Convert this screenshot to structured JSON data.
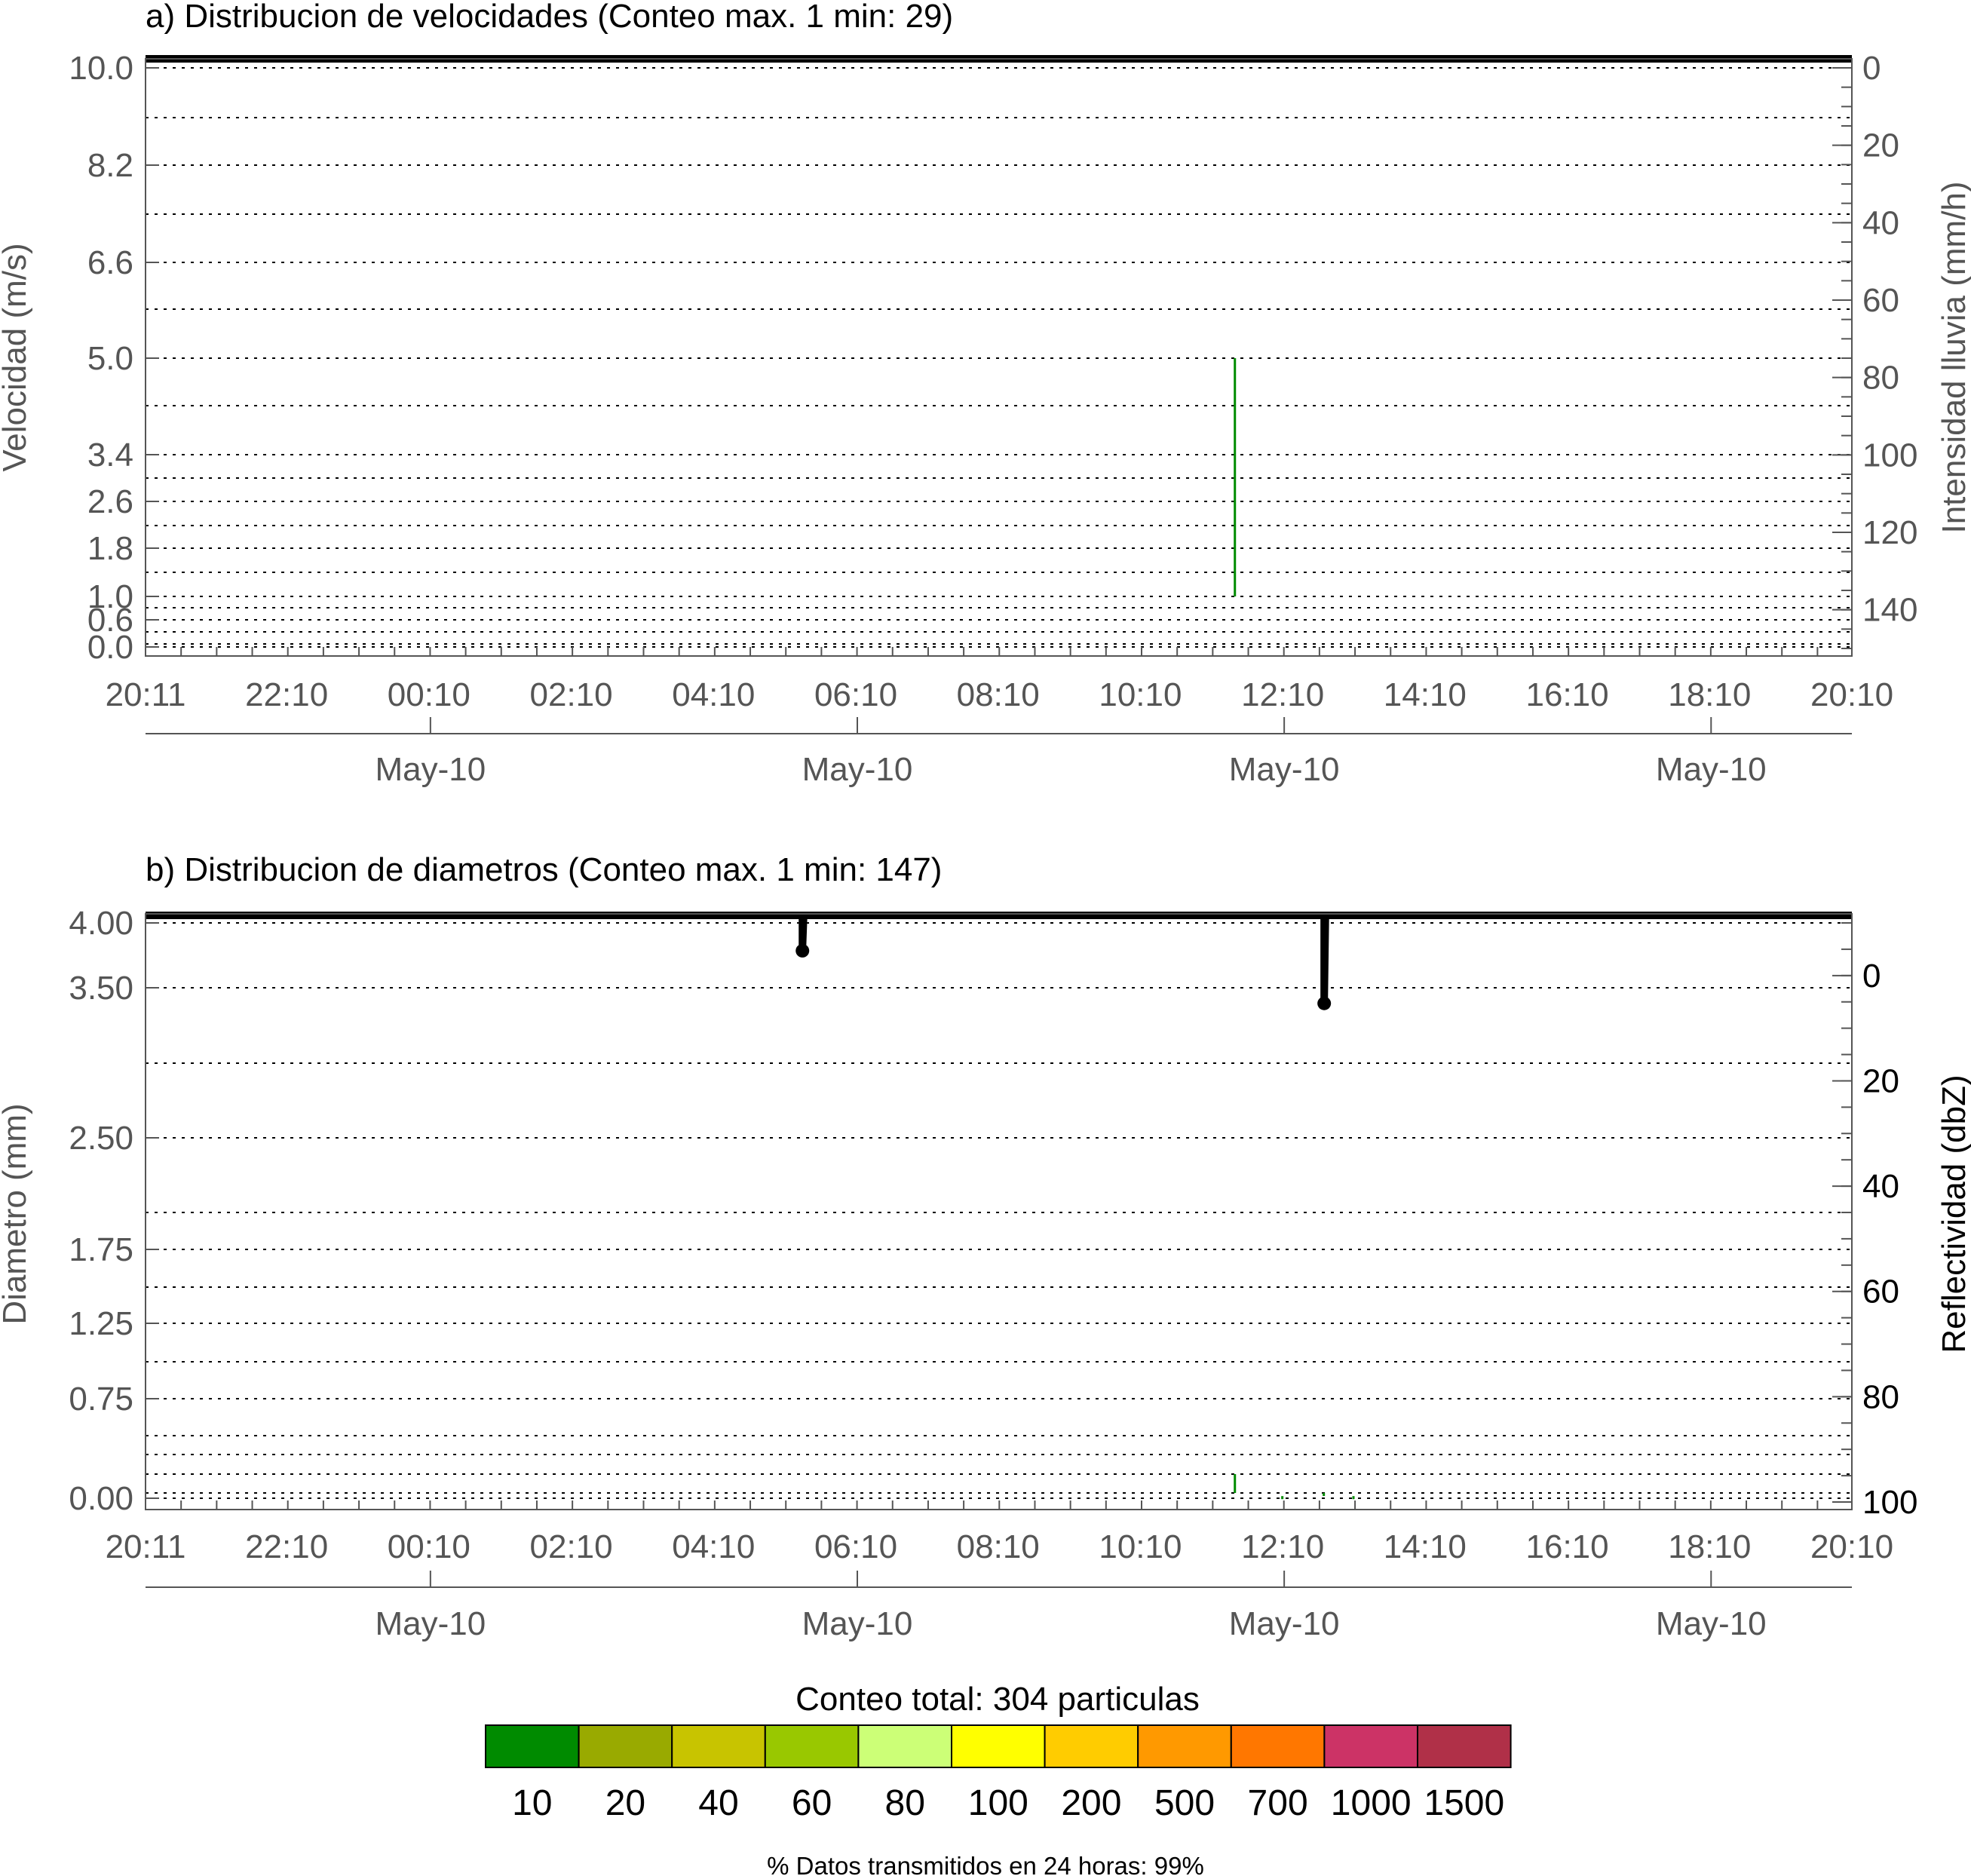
{
  "colors": {
    "frame": "#000000",
    "tick_text": "#555555",
    "grid": "#000000",
    "particles": "#008800"
  },
  "chart_data": [
    {
      "type": "heatmap",
      "title": "a) Distribucion de velocidades (Conteo max. 1 min: 29)",
      "ylabel": "Velocidad (m/s)",
      "y2label": "Intensidad lluvia (mm/h)",
      "xlabel": "",
      "ylim": [
        0.0,
        10.0
      ],
      "y_ticks": [
        "10.0",
        "8.2",
        "6.6",
        "5.0",
        "3.4",
        "2.6",
        "1.8",
        "1.0",
        "0.6",
        "0.0"
      ],
      "y_grid_bins": [
        10.0,
        9.1,
        8.2,
        7.4,
        6.6,
        5.8,
        5.0,
        4.2,
        3.4,
        3.0,
        2.6,
        2.2,
        1.8,
        1.4,
        1.0,
        0.8,
        0.6,
        0.4,
        0.2,
        0.0
      ],
      "y2_range": [
        0,
        150
      ],
      "y2_reversed": true,
      "y2_ticks": [
        "0",
        "20",
        "40",
        "60",
        "80",
        "100",
        "120",
        "140"
      ],
      "x_ticks": [
        "20:11",
        "22:10",
        "00:10",
        "02:10",
        "04:10",
        "06:10",
        "08:10",
        "10:10",
        "12:10",
        "14:10",
        "16:10",
        "18:10",
        "20:10"
      ],
      "date_ticks": [
        "May-10",
        "May-10",
        "May-10",
        "May-10"
      ],
      "grid": "dotted horizontal",
      "rain_intensity_series": [
        {
          "x": "20:11",
          "y": 0
        },
        {
          "x": "20:10",
          "y": 0
        }
      ],
      "cells": [
        {
          "x": "11:30",
          "v_from": 1.0,
          "v_to": 5.0,
          "count_class": "10"
        }
      ]
    },
    {
      "type": "heatmap",
      "title": "b) Distribucion de diametros (Conteo max. 1 min: 147)",
      "ylabel": "Diametro (mm)",
      "y2label": "Reflectividad (dbZ)",
      "xlabel": "",
      "ylim": [
        0.0,
        4.0
      ],
      "y_ticks": [
        "4.00",
        "3.50",
        "2.50",
        "1.75",
        "1.25",
        "0.75",
        "0.00"
      ],
      "y_grid_bins": [
        4.0,
        3.5,
        3.0,
        2.5,
        2.0,
        1.75,
        1.5,
        1.25,
        1.0,
        0.75,
        0.5,
        0.375,
        0.25,
        0.125,
        0.0
      ],
      "y2_range": [
        -10,
        100
      ],
      "y2_reversed": true,
      "y2_ticks": [
        "0",
        "20",
        "40",
        "60",
        "80",
        "100"
      ],
      "x_ticks": [
        "20:11",
        "22:10",
        "00:10",
        "02:10",
        "04:10",
        "06:10",
        "08:10",
        "10:10",
        "12:10",
        "14:10",
        "16:10",
        "18:10",
        "20:10"
      ],
      "date_ticks": [
        "May-10",
        "May-10",
        "May-10",
        "May-10"
      ],
      "grid": "dotted horizontal",
      "reflectivity_series": [
        {
          "x": "20:11",
          "y": -10
        },
        {
          "x": "05:25",
          "y": -10
        },
        {
          "x": "05:25",
          "y": -5
        },
        {
          "x": "05:26",
          "y": -10
        },
        {
          "x": "12:45",
          "y": -10
        },
        {
          "x": "12:45",
          "y": 5
        },
        {
          "x": "12:46",
          "y": -10
        },
        {
          "x": "20:10",
          "y": -10
        }
      ],
      "cells": [
        {
          "x": "11:30",
          "d_from": 0.0,
          "d_to": 0.25,
          "count_class": "10"
        },
        {
          "x": "12:10",
          "d_from": 0.0,
          "d_to": 0.05,
          "count_class": "10"
        },
        {
          "x": "12:45",
          "d_from": 0.0,
          "d_to": 0.125,
          "count_class": "10"
        },
        {
          "x": "13:10",
          "d_from": 0.0,
          "d_to": 0.05,
          "count_class": "10"
        }
      ]
    }
  ],
  "legend": {
    "title": "Conteo total: 304 particulas",
    "items": [
      {
        "label": "10",
        "color": "#008b00"
      },
      {
        "label": "20",
        "color": "#99aa00"
      },
      {
        "label": "40",
        "color": "#c8c400"
      },
      {
        "label": "60",
        "color": "#99c800"
      },
      {
        "label": "80",
        "color": "#ccff77"
      },
      {
        "label": "100",
        "color": "#ffff00"
      },
      {
        "label": "200",
        "color": "#ffcc00"
      },
      {
        "label": "500",
        "color": "#ff9900"
      },
      {
        "label": "700",
        "color": "#ff7700"
      },
      {
        "label": "1000",
        "color": "#cc3366"
      },
      {
        "label": "1500",
        "color": "#b03048"
      }
    ]
  },
  "footer": "% Datos transmitidos en 24 horas: 99%"
}
